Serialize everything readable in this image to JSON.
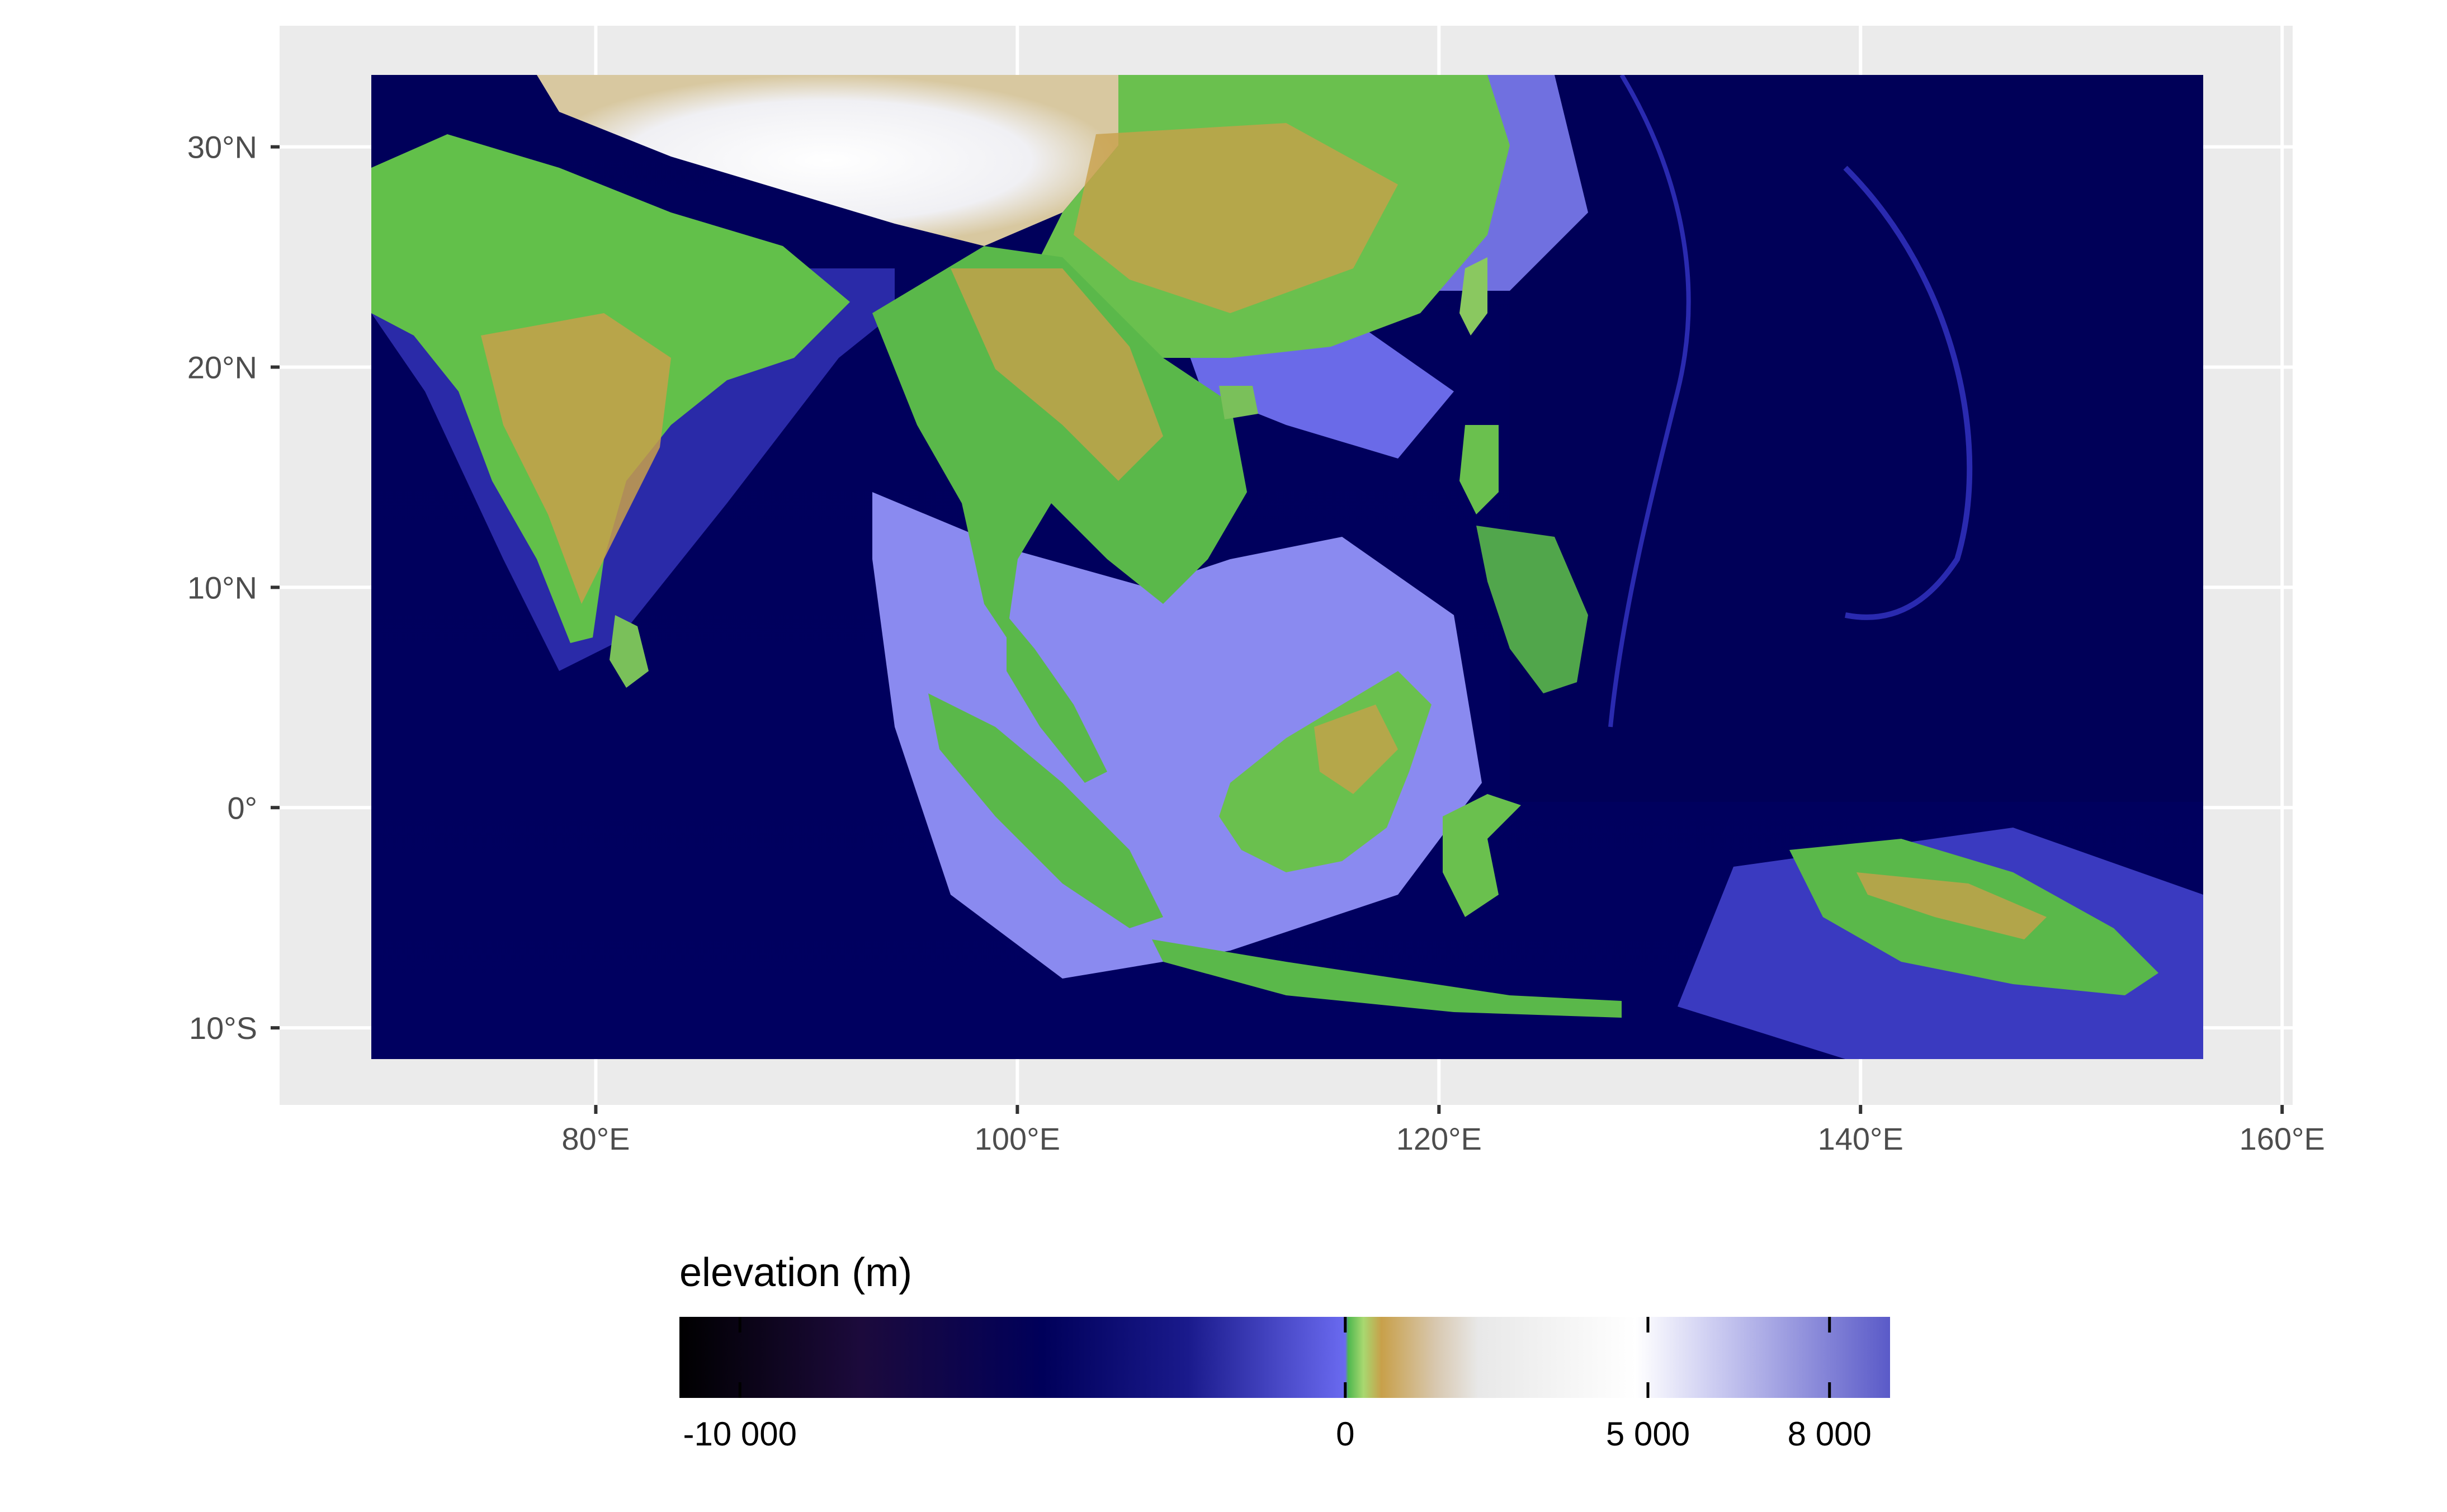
{
  "map": {
    "type": "raster elevation map",
    "region": "South and Southeast Asia, Western Pacific",
    "extent": {
      "lon": [
        69,
        156
      ],
      "lat": [
        -11.5,
        33.5
      ]
    },
    "panel_range": {
      "lon": [
        65,
        160.5
      ],
      "lat": [
        -13.5,
        35.5
      ]
    },
    "background_color": "#ebebeb",
    "grid_color": "#ffffff",
    "x_axis": {
      "ticks": [
        {
          "value": 80,
          "label": "80°E"
        },
        {
          "value": 100,
          "label": "100°E"
        },
        {
          "value": 120,
          "label": "120°E"
        },
        {
          "value": 140,
          "label": "140°E"
        },
        {
          "value": 160,
          "label": "160°E"
        }
      ]
    },
    "y_axis": {
      "ticks": [
        {
          "value": 30,
          "label": "30°N"
        },
        {
          "value": 20,
          "label": "20°N"
        },
        {
          "value": 10,
          "label": "10°N"
        },
        {
          "value": 0,
          "label": "0°"
        },
        {
          "value": -10,
          "label": "10°S"
        }
      ]
    }
  },
  "legend": {
    "title": "elevation (m)",
    "placement": "bottom",
    "range": [
      -11000,
      9000
    ],
    "breaks": [
      {
        "value": -10000,
        "label": "-10 000"
      },
      {
        "value": 0,
        "label": "0"
      },
      {
        "value": 5000,
        "label": "5 000"
      },
      {
        "value": 8000,
        "label": "8 000"
      }
    ],
    "colors": {
      "deep_ocean": "#000000",
      "ocean": "#00005a",
      "shallow_ocean": "#6a6af0",
      "lowland": "#4fb84f",
      "upland": "#c8a04a",
      "high_mountain": "#d6d6d6",
      "peak": "#ffffff",
      "above_peak": "#5a5ac8"
    }
  }
}
